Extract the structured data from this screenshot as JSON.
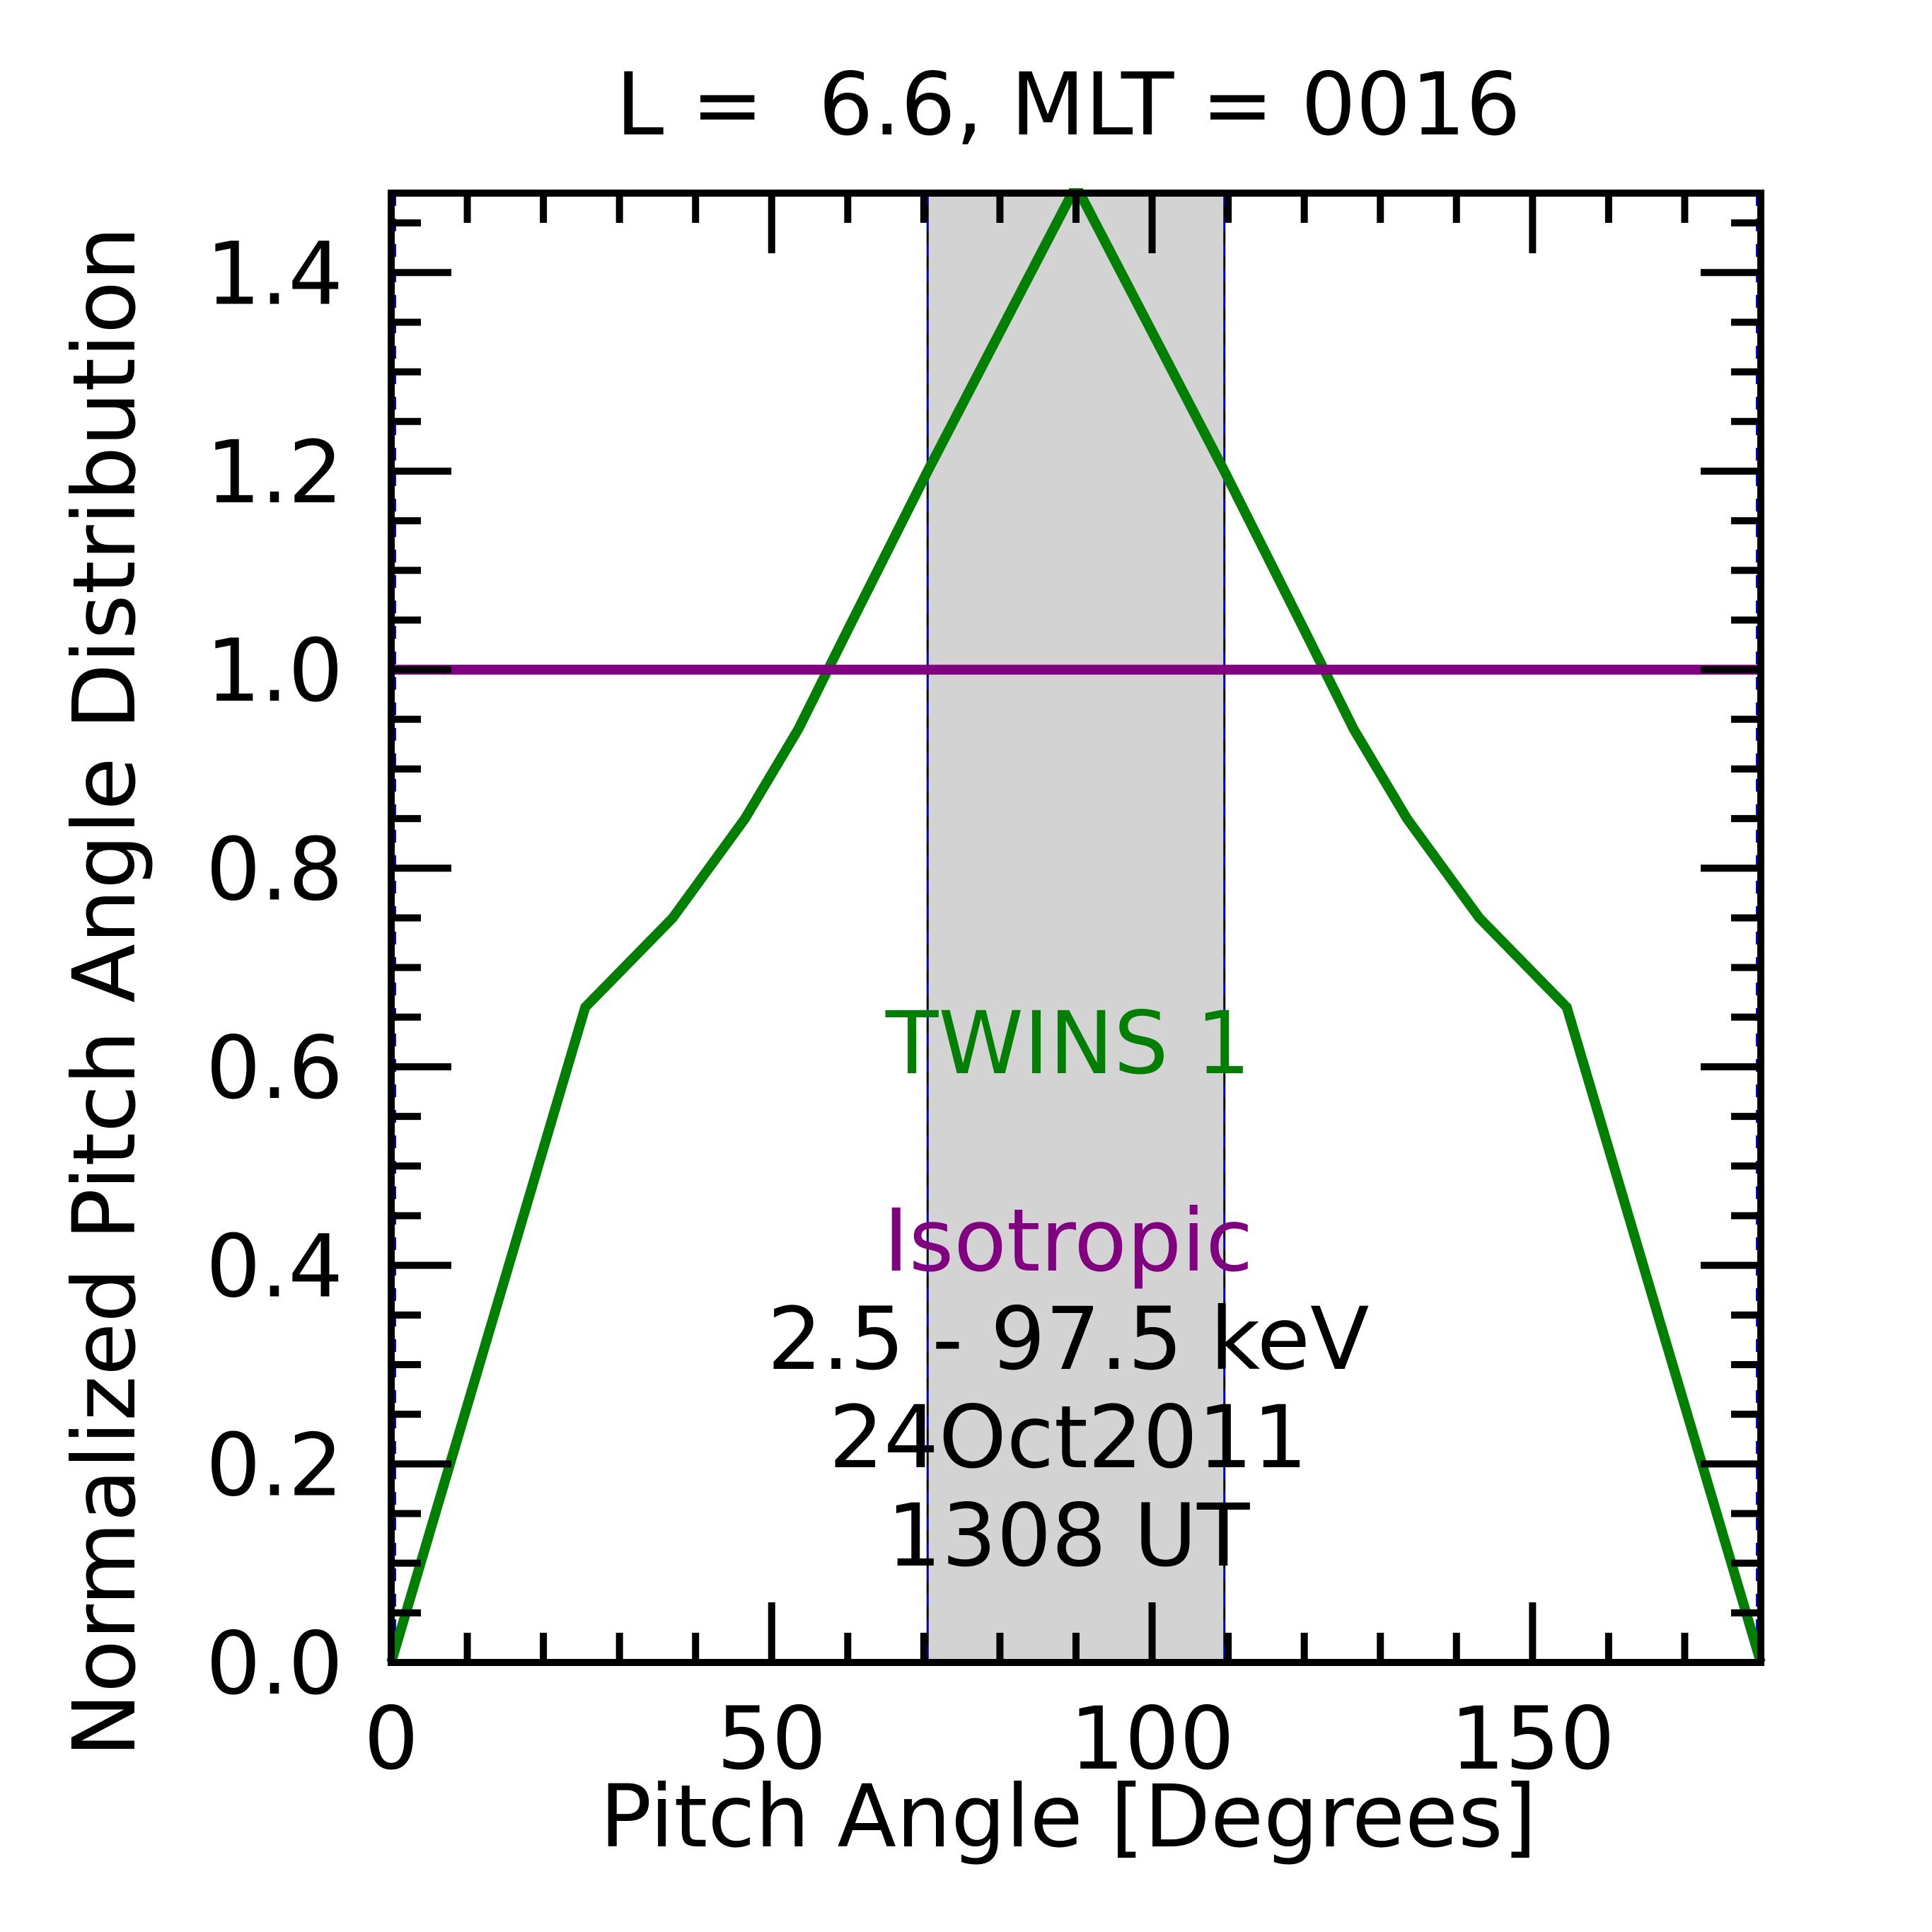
{
  "chart_data": {
    "type": "line",
    "title": "L =  6.6, MLT = 0016",
    "xlabel": "Pitch Angle [Degrees]",
    "ylabel": "Normalized Pitch Angle Distribution",
    "xlim": [
      0,
      180
    ],
    "ylim": [
      0,
      1.48
    ],
    "xticks": [
      0,
      50,
      100,
      150
    ],
    "xtick_labels": [
      "0",
      "50",
      "100",
      "150"
    ],
    "yticks": [
      0.0,
      0.2,
      0.4,
      0.6,
      0.8,
      1.0,
      1.2,
      1.4
    ],
    "ytick_labels": [
      "0.0",
      "0.2",
      "0.4",
      "0.6",
      "0.8",
      "1.0",
      "1.2",
      "1.4"
    ],
    "x_minor_step": 10,
    "y_minor_step": 0.05,
    "grid": false,
    "shaded_region": {
      "x": [
        70.5,
        109.5
      ],
      "color": "#d3d3d3"
    },
    "series": [
      {
        "name": "TWINS 1",
        "color": "#007f00",
        "x": [
          0,
          25.5,
          37,
          46.5,
          53.5,
          60,
          70.5,
          89.5,
          90.5,
          109.5,
          120,
          126.5,
          133.5,
          143,
          154.5,
          180
        ],
        "y": [
          0.0,
          0.66,
          0.75,
          0.85,
          0.94,
          1.04,
          1.2,
          1.48,
          1.48,
          1.2,
          1.04,
          0.94,
          0.85,
          0.75,
          0.66,
          0.0
        ]
      },
      {
        "name": "Isotropic",
        "color": "#800080",
        "x": [
          0,
          180
        ],
        "y": [
          1.0,
          1.0
        ]
      }
    ],
    "annotations": {
      "series1": "TWINS 1",
      "series2": "Isotropic",
      "energy": "2.5 - 97.5 keV",
      "date": "24Oct2011",
      "time": "1308 UT"
    }
  }
}
